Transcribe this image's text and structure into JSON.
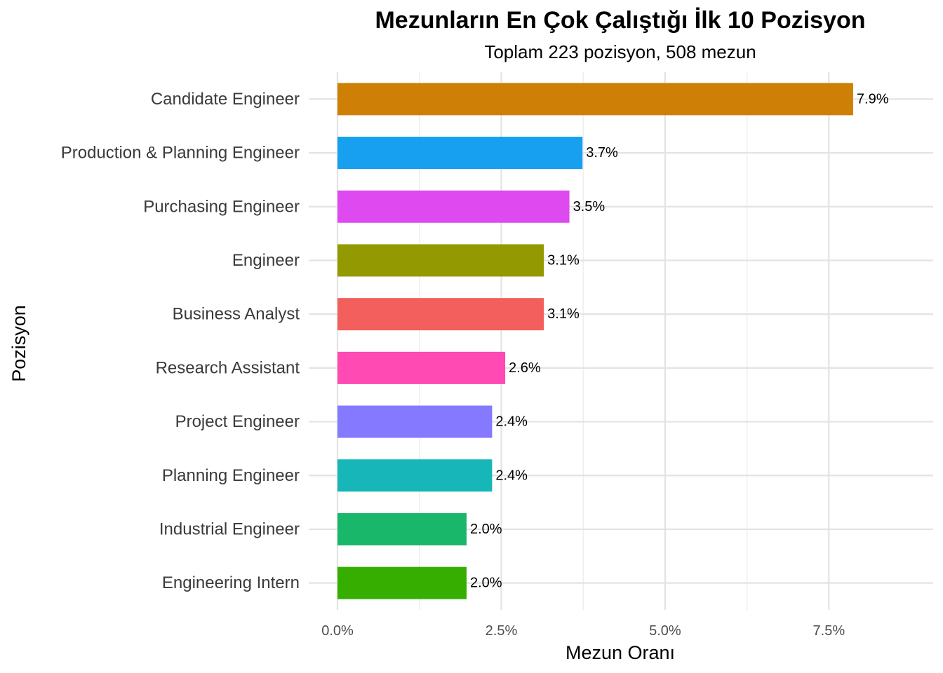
{
  "chart_data": {
    "type": "bar",
    "orientation": "horizontal",
    "title": "Mezunların En Çok Çalıştığı İlk 10 Pozisyon",
    "subtitle": "Toplam 223 pozisyon, 508 mezun",
    "xlabel": "Mezun Oranı",
    "ylabel": "Pozisyon",
    "xlim": [
      0,
      8.7
    ],
    "xticks": [
      0,
      2.5,
      5.0,
      7.5
    ],
    "xtick_labels": [
      "0.0%",
      "2.5%",
      "5.0%",
      "7.5%"
    ],
    "grid": true,
    "legend": "none",
    "bars": [
      {
        "category": "Candidate Engineer",
        "value": 7.87,
        "label": "7.9%",
        "color": "#CD7F06"
      },
      {
        "category": "Production & Planning Engineer",
        "value": 3.74,
        "label": "3.7%",
        "color": "#18A0F0"
      },
      {
        "category": "Purchasing Engineer",
        "value": 3.54,
        "label": "3.5%",
        "color": "#DE4AF0"
      },
      {
        "category": "Engineer",
        "value": 3.15,
        "label": "3.1%",
        "color": "#939900"
      },
      {
        "category": "Business Analyst",
        "value": 3.15,
        "label": "3.1%",
        "color": "#F25F5C"
      },
      {
        "category": "Research Assistant",
        "value": 2.56,
        "label": "2.6%",
        "color": "#FF49B3"
      },
      {
        "category": "Project Engineer",
        "value": 2.36,
        "label": "2.4%",
        "color": "#8479FF"
      },
      {
        "category": "Planning Engineer",
        "value": 2.36,
        "label": "2.4%",
        "color": "#17B6B8"
      },
      {
        "category": "Industrial Engineer",
        "value": 1.97,
        "label": "2.0%",
        "color": "#19B76A"
      },
      {
        "category": "Engineering Intern",
        "value": 1.97,
        "label": "2.0%",
        "color": "#35AE00"
      }
    ]
  }
}
